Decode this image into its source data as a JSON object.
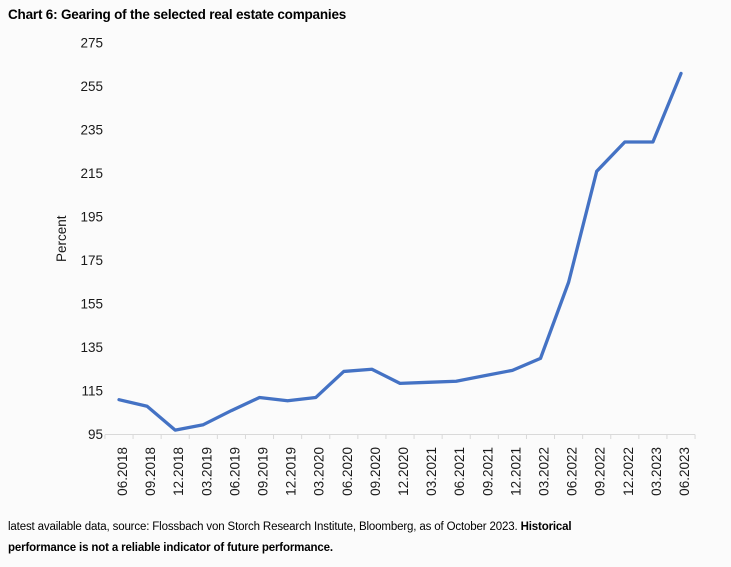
{
  "title": "Chart 6: Gearing of the selected real estate companies",
  "footer": {
    "line1_regular": "latest available data, source: Flossbach von Storch Research Institute, Bloomberg, as of October 2023. ",
    "line1_bold": "Historical",
    "line2_bold": "performance is not a reliable indicator of future performance."
  },
  "colors": {
    "line": "#4472C4",
    "axis": "#d9d9d9",
    "tick_text": "#1a1a1a",
    "background": "#fbfbfb"
  },
  "chart_data": {
    "type": "line",
    "title": "Chart 6: Gearing of the selected real estate companies",
    "xlabel": "",
    "ylabel": "Percent",
    "ylim": [
      95,
      275
    ],
    "ytick_step": 20,
    "grid": false,
    "legend": "none",
    "x": [
      "06.2018",
      "09.2018",
      "12.2018",
      "03.2019",
      "06.2019",
      "09.2019",
      "12.2019",
      "03.2020",
      "06.2020",
      "09.2020",
      "12.2020",
      "03.2021",
      "06.2021",
      "09.2021",
      "12.2021",
      "03.2022",
      "06.2022",
      "09.2022",
      "12.2022",
      "03.2023",
      "06.2023"
    ],
    "series": [
      {
        "name": "Gearing of selected real estate companies",
        "color": "#4472C4",
        "values": [
          111,
          108,
          97,
          99.5,
          106,
          112,
          110.5,
          112,
          124,
          125,
          118.5,
          119,
          119.5,
          122,
          124.5,
          130,
          165,
          216,
          229.5,
          229.5,
          261
        ]
      }
    ]
  }
}
